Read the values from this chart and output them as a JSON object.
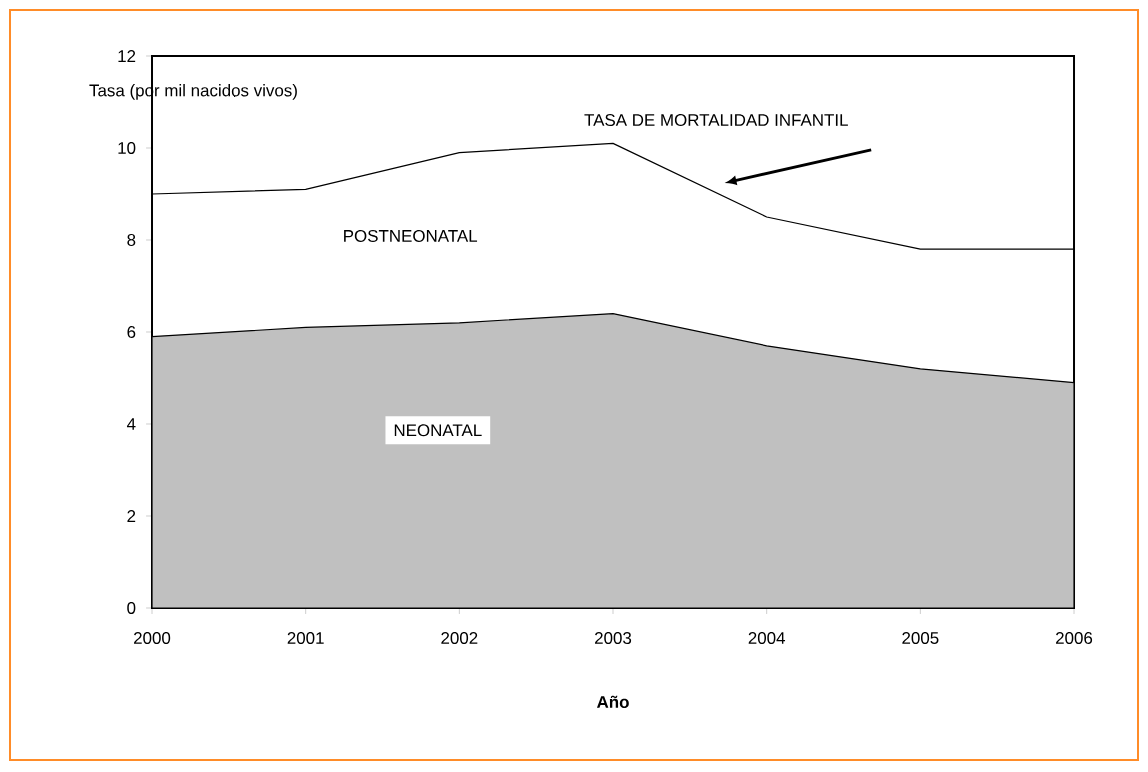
{
  "chart_data": {
    "type": "area",
    "xlabel": "Año",
    "ylabel": "Tasa (por mil nacidos vivos)",
    "x": [
      2000,
      2001,
      2002,
      2003,
      2004,
      2005,
      2006
    ],
    "series": [
      {
        "name": "NEONATAL",
        "color": "#c0c0c0",
        "values": [
          5.9,
          6.1,
          6.2,
          6.4,
          5.7,
          5.2,
          4.9
        ]
      },
      {
        "name": "TASA DE MORTALIDAD INFANTIL",
        "type": "line",
        "color": "#000000",
        "values": [
          9.0,
          9.1,
          9.9,
          10.1,
          8.5,
          7.8,
          7.8
        ]
      }
    ],
    "annotations": [
      "POSTNEONATAL"
    ],
    "xlim": [
      2000,
      2006
    ],
    "xticks": [
      2000,
      2001,
      2002,
      2003,
      2004,
      2005,
      2006
    ],
    "ylim": [
      0,
      12
    ],
    "yticks": [
      0,
      2,
      4,
      6,
      8,
      10,
      12
    ],
    "grid": false,
    "legend": false,
    "marker": "none",
    "line_style": "solid"
  }
}
